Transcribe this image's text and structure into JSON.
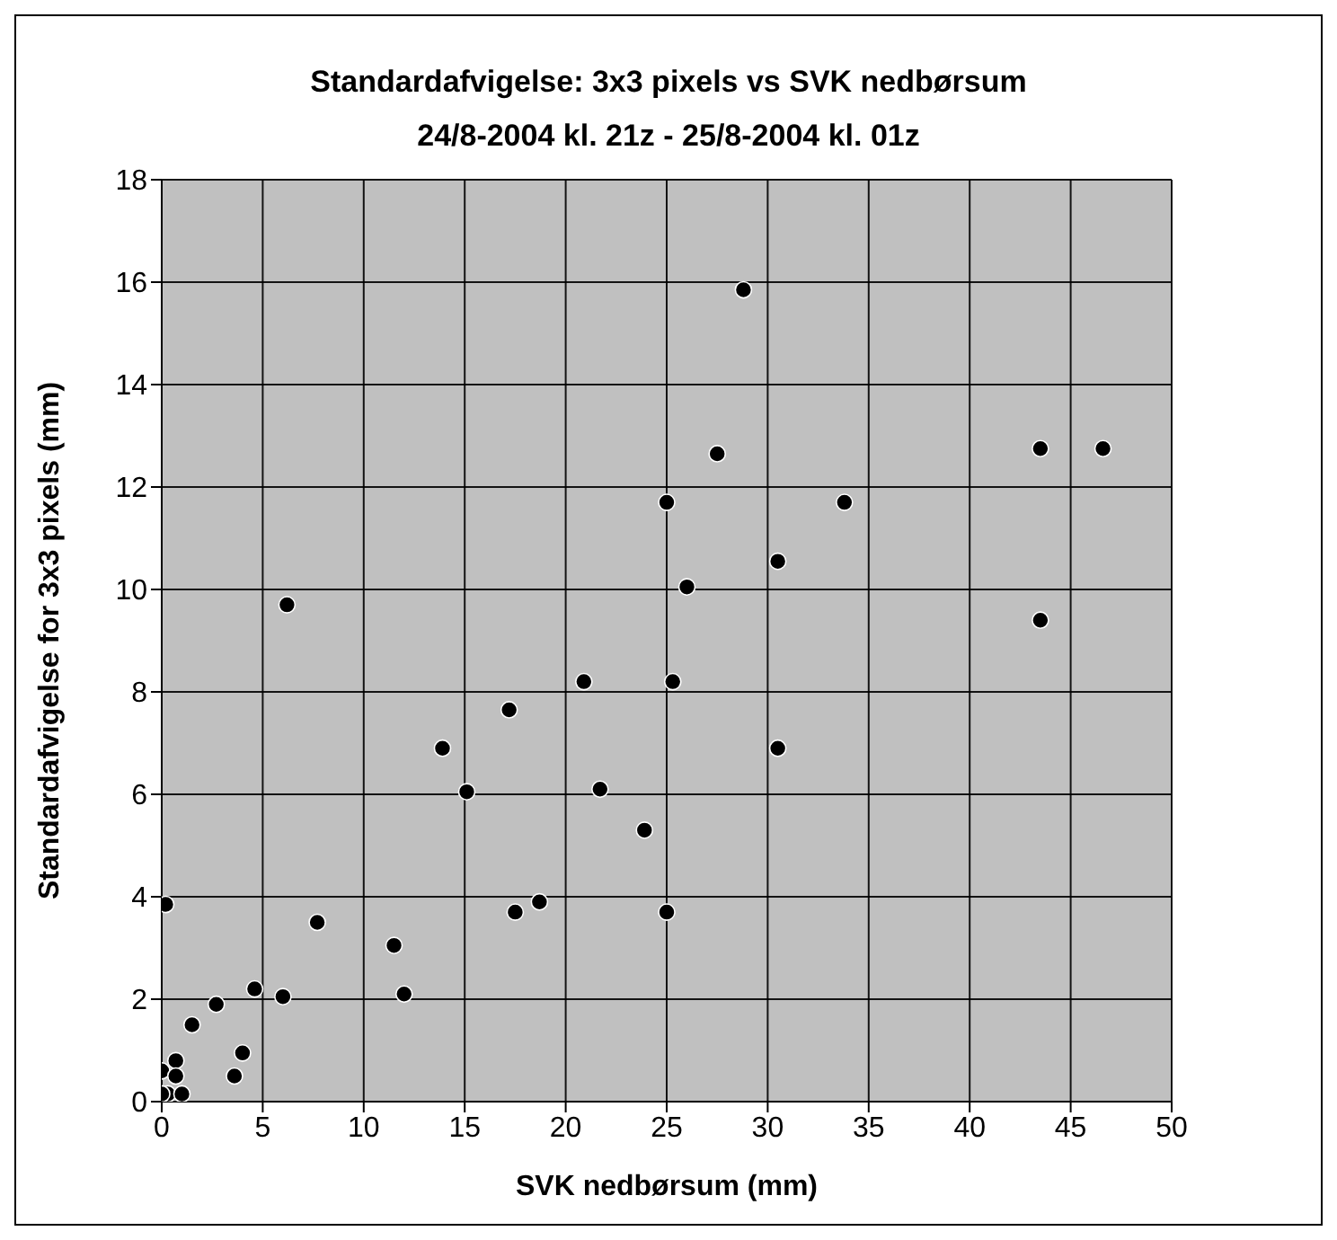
{
  "chart_data": {
    "type": "scatter",
    "title": "Standardafvigelse: 3x3 pixels vs SVK nedbørsum",
    "subtitle": "24/8-2004 kl. 21z - 25/8-2004 kl. 01z",
    "xlabel": "SVK nedbørsum (mm)",
    "ylabel": "Standardafvigelse for 3x3 pixels (mm)",
    "x": [
      0,
      0.3,
      0,
      0.7,
      0.7,
      1,
      0.2,
      1.5,
      2.7,
      3.6,
      4,
      4.6,
      6,
      6.2,
      7.7,
      11.5,
      12,
      13.9,
      15.1,
      17.2,
      17.5,
      18.7,
      20.9,
      21.7,
      23.9,
      25,
      25,
      25.3,
      26,
      27.5,
      28.8,
      30.5,
      30.5,
      33.8,
      43.5,
      43.5,
      46.6
    ],
    "series": [
      {
        "color": "#000000",
        "values": [
          0.6,
          0.15,
          0.15,
          0.8,
          0.5,
          0.15,
          3.85,
          1.5,
          1.9,
          0.5,
          0.95,
          2.2,
          2.05,
          9.7,
          3.5,
          3.05,
          2.1,
          6.9,
          6.05,
          7.65,
          3.7,
          3.9,
          8.2,
          6.1,
          5.3,
          11.7,
          3.7,
          8.2,
          10.05,
          12.65,
          15.85,
          10.55,
          6.9,
          11.7,
          12.75,
          9.4,
          12.75
        ]
      }
    ],
    "xlim": [
      0,
      50
    ],
    "xticks": [
      0,
      5,
      10,
      15,
      20,
      25,
      30,
      35,
      40,
      45,
      50
    ],
    "ylim": [
      0,
      18
    ],
    "yticks": [
      0,
      2,
      4,
      6,
      8,
      10,
      12,
      14,
      16,
      18
    ],
    "grid": true,
    "marker": "circle"
  }
}
